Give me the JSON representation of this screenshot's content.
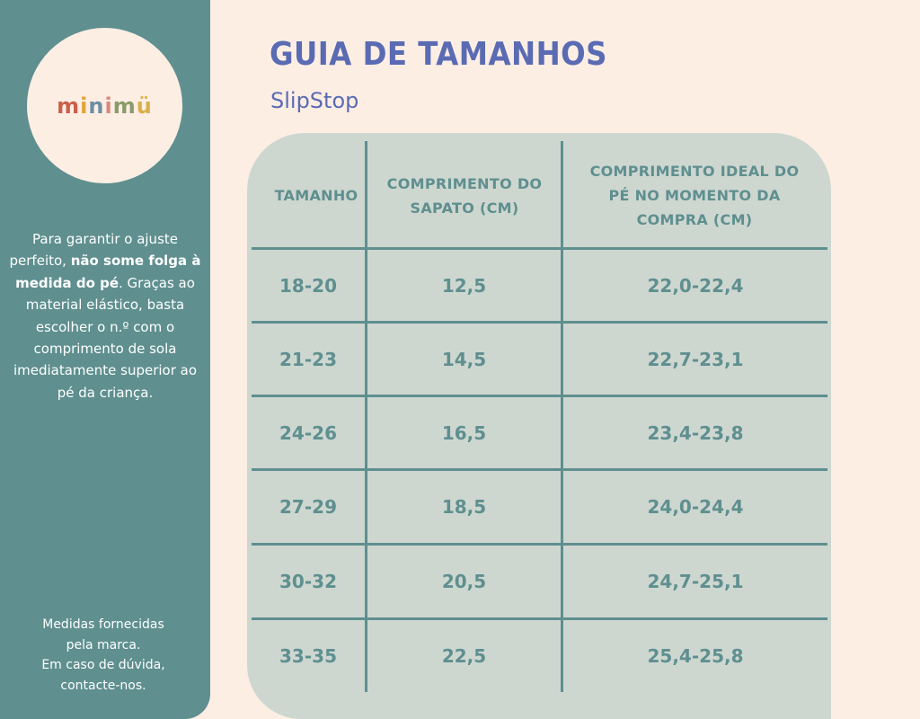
{
  "brand": {
    "logo_letters": [
      {
        "ch": "m",
        "color": "#c9604a"
      },
      {
        "ch": "i",
        "color": "#e3a338"
      },
      {
        "ch": "n",
        "color": "#6b8fa6"
      },
      {
        "ch": "i",
        "color": "#d98a7a"
      },
      {
        "ch": "m",
        "color": "#8a9a6a"
      },
      {
        "ch": "ü",
        "color": "#d9b04a"
      }
    ],
    "logo_text": "minimü"
  },
  "sidebar": {
    "intro_part1": "Para garantir o ajuste perfeito, ",
    "intro_bold": "não some folga à medida do pé",
    "intro_part2": ". Graças ao material elástico, basta escolher o n.º com o comprimento de sola imediatamente superior ao pé da criança.",
    "footer_lines": [
      "Medidas fornecidas",
      "pela marca.",
      "Em caso de dúvida,",
      "contacte-nos."
    ]
  },
  "header": {
    "title": "GUIA DE TAMANHOS",
    "subtitle": "SlipStop"
  },
  "table": {
    "headers": [
      "TAMANHO",
      "COMPRIMENTO DO SAPATO (CM)",
      "COMPRIMENTO IDEAL DO PÉ NO MOMENTO DA COMPRA (CM)"
    ],
    "rows": [
      [
        "18-20",
        "12,5",
        "22,0-22,4"
      ],
      [
        "21-23",
        "14,5",
        "22,7-23,1"
      ],
      [
        "24-26",
        "16,5",
        "23,4-23,8"
      ],
      [
        "27-29",
        "18,5",
        "24,0-24,4"
      ],
      [
        "30-32",
        "20,5",
        "24,7-25,1"
      ],
      [
        "33-35",
        "22,5",
        "25,4-25,8"
      ]
    ]
  },
  "colors": {
    "background": "#fdeee4",
    "sidebar": "#5f8f8f",
    "title": "#5a6bb3",
    "table_fill": "#cdd7d0",
    "table_text": "#5f8f8f"
  }
}
